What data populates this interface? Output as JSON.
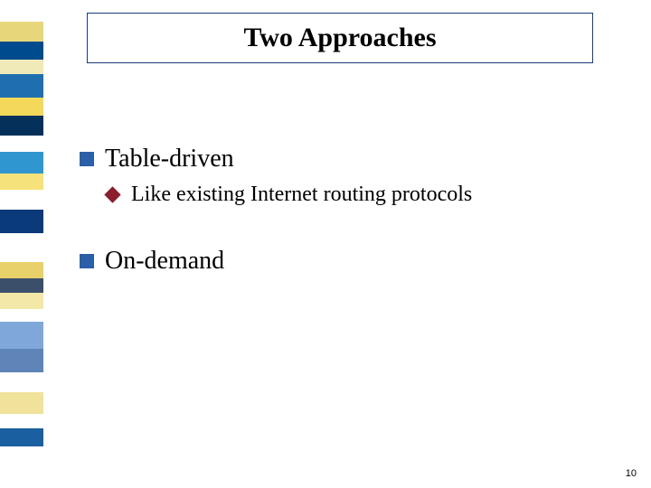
{
  "slide": {
    "title": "Two Approaches",
    "page_number": "10",
    "title_border_color": "#1a3b7a",
    "bullets": [
      {
        "text": "Table-driven",
        "level": 1,
        "bullet_color": "#2b5fa8",
        "sub": [
          {
            "text": "Like existing Internet routing protocols",
            "bullet_color": "#8a1d2e"
          }
        ]
      },
      {
        "text": "On-demand",
        "level": 1,
        "bullet_color": "#2b5fa8",
        "sub": []
      }
    ]
  },
  "sidebar_segments": [
    {
      "color": "#ffffff",
      "height": 24
    },
    {
      "color": "#e8d77a",
      "height": 22
    },
    {
      "color": "#004b8d",
      "height": 20
    },
    {
      "color": "#f0e9b8",
      "height": 16
    },
    {
      "color": "#1f6fb0",
      "height": 26
    },
    {
      "color": "#f4d85a",
      "height": 20
    },
    {
      "color": "#04305a",
      "height": 22
    },
    {
      "color": "#ffffff",
      "height": 18
    },
    {
      "color": "#2f96cf",
      "height": 24
    },
    {
      "color": "#f6e27a",
      "height": 18
    },
    {
      "color": "#ffffff",
      "height": 22
    },
    {
      "color": "#0b3a7a",
      "height": 26
    },
    {
      "color": "#ffffff",
      "height": 32
    },
    {
      "color": "#e8d06a",
      "height": 18
    },
    {
      "color": "#3b4f6a",
      "height": 16
    },
    {
      "color": "#f4e8a8",
      "height": 18
    },
    {
      "color": "#ffffff",
      "height": 14
    },
    {
      "color": "#7fa8d8",
      "height": 30
    },
    {
      "color": "#5e84b8",
      "height": 26
    },
    {
      "color": "#ffffff",
      "height": 22
    },
    {
      "color": "#f0e29a",
      "height": 24
    },
    {
      "color": "#ffffff",
      "height": 16
    },
    {
      "color": "#1a5fa0",
      "height": 20
    },
    {
      "color": "#ffffff",
      "height": 46
    }
  ]
}
